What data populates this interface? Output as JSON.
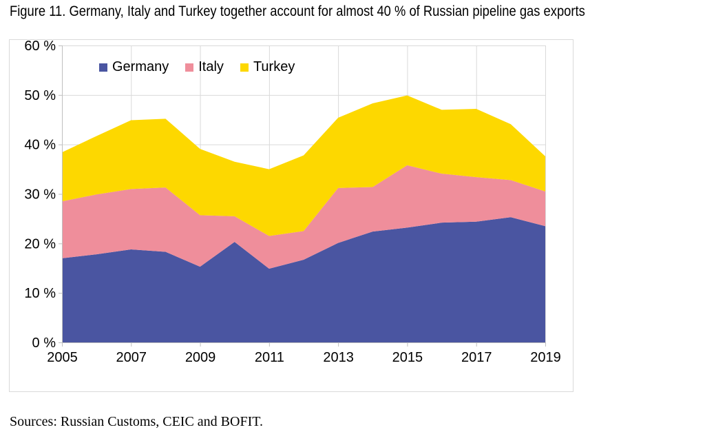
{
  "title": "Figure 11. Germany, Italy and Turkey together account for almost 40 % of Russian pipeline gas exports",
  "source_note": "Sources: Russian Customs, CEIC and BOFIT.",
  "chart_data": {
    "type": "area",
    "stacked": true,
    "title": "",
    "xlabel": "",
    "ylabel": "",
    "x": [
      2005,
      2006,
      2007,
      2008,
      2009,
      2010,
      2011,
      2012,
      2013,
      2014,
      2015,
      2016,
      2017,
      2018,
      2019
    ],
    "series": [
      {
        "name": "Germany",
        "color": "#4a55a1",
        "values": [
          17.0,
          17.8,
          18.8,
          18.3,
          15.3,
          20.3,
          14.9,
          16.7,
          20.1,
          22.4,
          23.2,
          24.2,
          24.4,
          25.3,
          23.5
        ]
      },
      {
        "name": "Italy",
        "color": "#ef8e9b",
        "values": [
          11.5,
          12.1,
          12.2,
          13.0,
          10.4,
          5.2,
          6.6,
          5.8,
          11.1,
          9.0,
          12.6,
          9.9,
          9.0,
          7.5,
          7.0
        ]
      },
      {
        "name": "Turkey",
        "color": "#fdd800",
        "values": [
          9.9,
          11.8,
          13.9,
          13.9,
          13.4,
          11.0,
          13.5,
          15.3,
          14.2,
          16.9,
          14.1,
          12.9,
          13.8,
          11.3,
          7.1
        ]
      }
    ],
    "ylim": [
      0,
      60
    ],
    "y_tick_step": 10,
    "y_tick_labels": [
      "0 %",
      "10 %",
      "20 %",
      "30 %",
      "40 %",
      "50 %",
      "60 %"
    ],
    "x_tick_years": [
      2005,
      2007,
      2009,
      2011,
      2013,
      2015,
      2017,
      2019
    ],
    "x_tick_labels": [
      "2005",
      "2007",
      "2009",
      "2011",
      "2013",
      "2015",
      "2017",
      "2019"
    ],
    "grid": true,
    "legend_position": "top",
    "grid_color": "#d9d9d9",
    "axis_color": "#bfbfbf",
    "text_color": "#000000"
  }
}
